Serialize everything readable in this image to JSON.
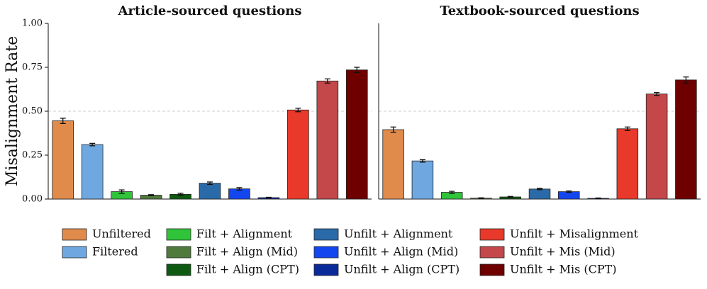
{
  "chart_data": [
    {
      "type": "bar",
      "title": "Article-sourced questions",
      "ylabel": "Misalignment Rate",
      "ylim": [
        0,
        1
      ],
      "yticks": [
        {
          "value": 0,
          "label": "0.00"
        },
        {
          "value": 0.25,
          "label": "0.25"
        },
        {
          "value": 0.5,
          "label": "0.50"
        },
        {
          "value": 0.75,
          "label": "0.75"
        },
        {
          "value": 1,
          "label": "1.00"
        }
      ],
      "reference_line": 0.5,
      "series": [
        {
          "name": "Unfiltered",
          "color": "#e08b4c",
          "values": [
            0.445
          ],
          "errors": [
            0.015
          ]
        },
        {
          "name": "Filtered",
          "color": "#6fa8e0",
          "values": [
            0.31
          ],
          "errors": [
            0.007
          ]
        },
        {
          "name": "Filt + Alignment",
          "color": "#2fc43a",
          "values": [
            0.042
          ],
          "errors": [
            0.01
          ]
        },
        {
          "name": "Filt + Align (Mid)",
          "color": "#4f7a3c",
          "values": [
            0.022
          ],
          "errors": [
            0.003
          ]
        },
        {
          "name": "Filt + Align (CPT)",
          "color": "#0f5a12",
          "values": [
            0.027
          ],
          "errors": [
            0.006
          ]
        },
        {
          "name": "Unfilt + Alignment",
          "color": "#2a6aa8",
          "values": [
            0.09
          ],
          "errors": [
            0.007
          ]
        },
        {
          "name": "Unfilt + Align (Mid)",
          "color": "#1446f0",
          "values": [
            0.058
          ],
          "errors": [
            0.007
          ]
        },
        {
          "name": "Unfilt + Align (CPT)",
          "color": "#0a2a9a",
          "values": [
            0.008
          ],
          "errors": [
            0.002
          ]
        },
        {
          "name": "Unfilt + Misalignment",
          "color": "#e8392a",
          "values": [
            0.507
          ],
          "errors": [
            0.01
          ]
        },
        {
          "name": "Unfilt + Mis (Mid)",
          "color": "#c4474a",
          "values": [
            0.672
          ],
          "errors": [
            0.012
          ]
        },
        {
          "name": "Unfilt + Mis (CPT)",
          "color": "#6e0000",
          "values": [
            0.735
          ],
          "errors": [
            0.015
          ]
        }
      ]
    },
    {
      "type": "bar",
      "title": "Textbook-sourced questions",
      "ylim": [
        0,
        1
      ],
      "reference_line": 0.5,
      "series": [
        {
          "name": "Unfiltered",
          "color": "#e08b4c",
          "values": [
            0.395
          ],
          "errors": [
            0.015
          ]
        },
        {
          "name": "Filtered",
          "color": "#6fa8e0",
          "values": [
            0.217
          ],
          "errors": [
            0.007
          ]
        },
        {
          "name": "Filt + Alignment",
          "color": "#2fc43a",
          "values": [
            0.038
          ],
          "errors": [
            0.006
          ]
        },
        {
          "name": "Filt + Align (Mid)",
          "color": "#4f7a3c",
          "values": [
            0.005
          ],
          "errors": [
            0.002
          ]
        },
        {
          "name": "Filt + Align (CPT)",
          "color": "#0f5a12",
          "values": [
            0.012
          ],
          "errors": [
            0.003
          ]
        },
        {
          "name": "Unfilt + Alignment",
          "color": "#2a6aa8",
          "values": [
            0.057
          ],
          "errors": [
            0.004
          ]
        },
        {
          "name": "Unfilt + Align (Mid)",
          "color": "#1446f0",
          "values": [
            0.042
          ],
          "errors": [
            0.004
          ]
        },
        {
          "name": "Unfilt + Align (CPT)",
          "color": "#0a2a9a",
          "values": [
            0.004
          ],
          "errors": [
            0.002
          ]
        },
        {
          "name": "Unfilt + Misalignment",
          "color": "#e8392a",
          "values": [
            0.4
          ],
          "errors": [
            0.01
          ]
        },
        {
          "name": "Unfilt + Mis (Mid)",
          "color": "#c4474a",
          "values": [
            0.598
          ],
          "errors": [
            0.008
          ]
        },
        {
          "name": "Unfilt + Mis (CPT)",
          "color": "#6e0000",
          "values": [
            0.678
          ],
          "errors": [
            0.017
          ]
        }
      ]
    }
  ]
}
